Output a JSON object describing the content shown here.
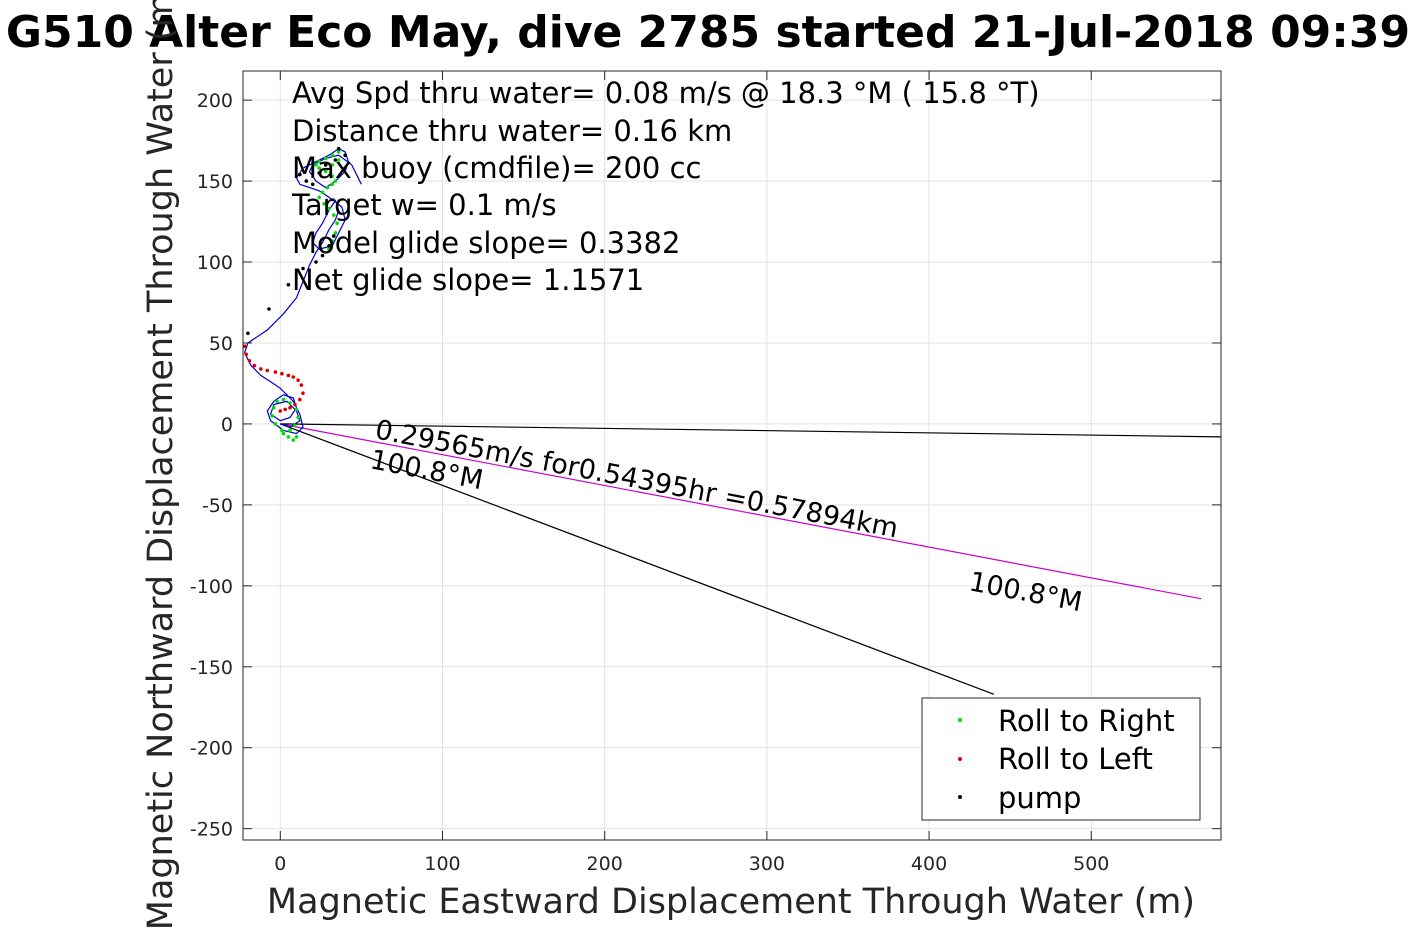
{
  "chart_data": {
    "type": "scatter",
    "title": "G510 Alter Eco May, dive 2785 started 21-Jul-2018 09:39",
    "xlabel": "Magnetic Eastward Displacement Through Water (m)",
    "ylabel": "Magnetic Northward Displacement Through Water (m)",
    "xlim": [
      -23,
      580
    ],
    "ylim": [
      -257,
      218
    ],
    "xticks": [
      0,
      100,
      200,
      300,
      400,
      500
    ],
    "yticks": [
      200,
      150,
      100,
      50,
      0,
      -50,
      -100,
      -150,
      -200,
      -250
    ],
    "grid": true,
    "annotations": [
      "Avg Spd thru water=  0.08 m/s @  18.3 °M ( 15.8 °T)",
      "Distance thru water=  0.16 km",
      "Max buoy (cmdfile)= 200 cc",
      "Target w= 0.1 m/s",
      "Model glide slope= 0.3382",
      "Net glide slope= 1.1571"
    ],
    "current_label": "0.29565m/s for0.54395hr =0.57894km",
    "heading_label_1": "100.8°M",
    "heading_label_2": "100.8°M",
    "lines": [
      {
        "name": "current vector",
        "color": "#cc00cc",
        "x": [
          0,
          568
        ],
        "y": [
          0,
          -108
        ]
      },
      {
        "name": "heading ref A",
        "color": "#000000",
        "x": [
          0,
          580
        ],
        "y": [
          0,
          -8
        ]
      },
      {
        "name": "heading ref B",
        "color": "#000000",
        "x": [
          0,
          440
        ],
        "y": [
          0,
          -167
        ]
      },
      {
        "name": "trajectory",
        "color": "#0000cc",
        "x": [
          0,
          6,
          12,
          10,
          4,
          -4,
          -6,
          0,
          6,
          10,
          8,
          2,
          -4,
          -8,
          -6,
          2,
          10,
          14,
          12,
          8,
          4,
          0,
          -6,
          -12,
          -18,
          -22,
          -20,
          -8,
          2,
          10,
          14,
          18,
          22,
          26,
          30,
          34,
          36,
          34,
          30,
          26,
          22,
          20,
          24,
          32,
          36,
          40,
          38,
          30,
          24,
          18,
          12,
          10,
          14,
          22,
          30,
          36,
          40,
          42,
          40,
          34,
          28,
          22,
          18,
          20,
          28,
          36,
          44,
          50
        ],
        "y": [
          0,
          -2,
          2,
          8,
          14,
          12,
          6,
          2,
          4,
          10,
          16,
          18,
          14,
          8,
          2,
          -4,
          -6,
          -2,
          6,
          14,
          18,
          22,
          26,
          30,
          36,
          44,
          50,
          58,
          68,
          78,
          88,
          98,
          106,
          112,
          120,
          126,
          132,
          138,
          132,
          124,
          118,
          112,
          108,
          110,
          118,
          126,
          134,
          140,
          144,
          146,
          148,
          152,
          158,
          162,
          166,
          170,
          168,
          162,
          156,
          150,
          146,
          150,
          156,
          160,
          164,
          166,
          160,
          148
        ]
      }
    ],
    "series": [
      {
        "name": "Roll to Right",
        "color": "#00dd00",
        "x": [
          2,
          6,
          9,
          11,
          10,
          6,
          2,
          -2,
          -4,
          -5,
          -3,
          1,
          5,
          8,
          10,
          30,
          32,
          34,
          35,
          33,
          30,
          27,
          24,
          26,
          29,
          32,
          34,
          32,
          28,
          24,
          22,
          24,
          28,
          32,
          36,
          40,
          36,
          32,
          28
        ],
        "y": [
          -6,
          -4,
          -1,
          4,
          9,
          13,
          15,
          14,
          10,
          5,
          0,
          -4,
          -8,
          -10,
          -8,
          108,
          113,
          118,
          124,
          129,
          133,
          136,
          140,
          143,
          146,
          148,
          150,
          153,
          156,
          158,
          160,
          162,
          164,
          166,
          168,
          166,
          163,
          160,
          157
        ]
      },
      {
        "name": "Roll to Left",
        "color": "#dd0000",
        "x": [
          -22,
          -21,
          -19,
          -16,
          -12,
          -8,
          -3,
          1,
          5,
          8,
          11,
          13,
          14,
          12,
          9,
          6,
          3,
          0
        ],
        "y": [
          48,
          43,
          39,
          36,
          34,
          33,
          32,
          31,
          30,
          29,
          27,
          24,
          19,
          15,
          12,
          10,
          9,
          8
        ]
      },
      {
        "name": "pump",
        "color": "#000000",
        "x": [
          -20,
          -7,
          5,
          14,
          22,
          26,
          30,
          33,
          20,
          16,
          12,
          24,
          28,
          34,
          40,
          36
        ],
        "y": [
          56,
          71,
          86,
          96,
          100,
          104,
          110,
          116,
          148,
          150,
          154,
          155,
          160,
          163,
          166,
          170
        ]
      }
    ],
    "legend": {
      "position": "bottom-right",
      "entries": [
        {
          "label": "Roll to Right",
          "color": "#00dd00"
        },
        {
          "label": "Roll to Left",
          "color": "#dd0000"
        },
        {
          "label": "pump",
          "color": "#000000"
        }
      ]
    }
  }
}
